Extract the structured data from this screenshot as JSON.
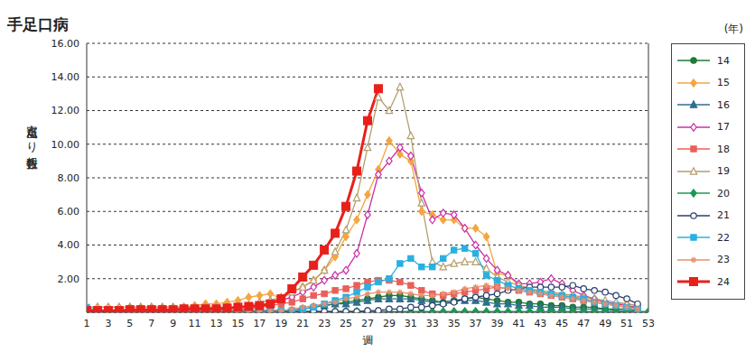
{
  "chart_data": {
    "type": "line",
    "title": "手足口病",
    "x_label": "週",
    "y_label": "定点当たり報告数",
    "legend_title": "(年)",
    "legend": "right",
    "grid": true,
    "x": [
      1,
      2,
      3,
      4,
      5,
      6,
      7,
      8,
      9,
      10,
      11,
      12,
      13,
      14,
      15,
      16,
      17,
      18,
      19,
      20,
      21,
      22,
      23,
      24,
      25,
      26,
      27,
      28,
      29,
      30,
      31,
      32,
      33,
      34,
      35,
      36,
      37,
      38,
      39,
      40,
      41,
      42,
      43,
      44,
      45,
      46,
      47,
      48,
      49,
      50,
      51,
      52,
      53
    ],
    "xlim": [
      1,
      53
    ],
    "xticks": [
      1,
      3,
      5,
      7,
      9,
      11,
      13,
      15,
      17,
      19,
      21,
      23,
      25,
      27,
      29,
      31,
      33,
      35,
      37,
      39,
      41,
      43,
      45,
      47,
      49,
      51,
      53
    ],
    "ylim": [
      0,
      16
    ],
    "yticks": [
      {
        "value": 2,
        "label": "2.00"
      },
      {
        "value": 4,
        "label": "4.00"
      },
      {
        "value": 6,
        "label": "6.00"
      },
      {
        "value": 8,
        "label": "8.00"
      },
      {
        "value": 10,
        "label": "10.00"
      },
      {
        "value": 12,
        "label": "12.00"
      },
      {
        "value": 14,
        "label": "14.00"
      },
      {
        "value": 16,
        "label": "16.00"
      }
    ],
    "series": [
      {
        "name": "14",
        "color": "#1f7a35",
        "marker": "circle",
        "line_style": "solid",
        "values": [
          0.1,
          0.1,
          0.1,
          0.1,
          0.1,
          0.1,
          0.1,
          0.1,
          0.1,
          0.1,
          0.1,
          0.1,
          0.1,
          0.1,
          0.1,
          0.1,
          0.1,
          0.1,
          0.1,
          0.1,
          0.2,
          0.3,
          0.4,
          0.5,
          0.6,
          0.7,
          0.8,
          0.9,
          1.0,
          1.0,
          0.9,
          0.8,
          0.7,
          0.6,
          0.7,
          0.8,
          0.9,
          0.8,
          0.7,
          0.6,
          0.6,
          0.5,
          0.5,
          0.4,
          0.4,
          0.3,
          0.3,
          0.3,
          0.2,
          0.2,
          0.2,
          0.1,
          null
        ]
      },
      {
        "name": "15",
        "color": "#f5a640",
        "marker": "diamond",
        "line_style": "solid",
        "values": [
          0.3,
          0.3,
          0.3,
          0.3,
          0.3,
          0.3,
          0.3,
          0.3,
          0.3,
          0.3,
          0.4,
          0.5,
          0.5,
          0.6,
          0.7,
          0.9,
          1.0,
          1.1,
          0.8,
          1.2,
          1.5,
          1.9,
          2.5,
          3.3,
          4.5,
          5.5,
          7.0,
          8.5,
          10.2,
          9.4,
          9.0,
          6.0,
          5.8,
          5.5,
          5.5,
          5.0,
          5.0,
          4.5,
          2.3,
          2.2,
          1.6,
          1.4,
          1.2,
          1.1,
          1.0,
          0.9,
          0.8,
          0.7,
          0.6,
          0.5,
          0.5,
          0.4,
          null
        ]
      },
      {
        "name": "16",
        "color": "#2f6f8f",
        "marker": "triangle",
        "line_style": "solid",
        "values": [
          0.1,
          0.1,
          0.1,
          0.1,
          0.1,
          0.1,
          0.1,
          0.1,
          0.1,
          0.1,
          0.1,
          0.1,
          0.1,
          0.1,
          0.1,
          0.1,
          0.1,
          0.1,
          0.1,
          0.1,
          0.2,
          0.3,
          0.4,
          0.5,
          0.5,
          0.6,
          0.7,
          0.8,
          0.8,
          0.8,
          0.8,
          0.7,
          0.6,
          0.6,
          0.7,
          0.7,
          0.7,
          0.6,
          0.5,
          0.5,
          0.4,
          0.4,
          0.3,
          0.3,
          0.3,
          0.2,
          0.2,
          0.2,
          0.2,
          0.1,
          0.1,
          0.1,
          null
        ]
      },
      {
        "name": "17",
        "color": "#cc2fa8",
        "marker": "diamond_open",
        "line_style": "solid",
        "values": [
          0.1,
          0.1,
          0.1,
          0.1,
          0.1,
          0.1,
          0.1,
          0.1,
          0.1,
          0.1,
          0.1,
          0.1,
          0.1,
          0.1,
          0.1,
          0.2,
          0.3,
          0.5,
          0.7,
          0.9,
          1.2,
          1.5,
          1.9,
          2.2,
          2.5,
          3.5,
          5.8,
          8.2,
          9.0,
          9.8,
          9.3,
          7.1,
          5.5,
          5.9,
          5.8,
          5.0,
          4.0,
          3.2,
          2.5,
          2.2,
          1.7,
          1.7,
          1.8,
          2.0,
          1.7,
          1.3,
          1.0,
          0.8,
          0.6,
          0.5,
          0.4,
          0.3,
          null
        ]
      },
      {
        "name": "18",
        "color": "#e8605a",
        "marker": "square",
        "line_style": "solid",
        "values": [
          0.1,
          0.1,
          0.1,
          0.1,
          0.1,
          0.1,
          0.1,
          0.1,
          0.1,
          0.1,
          0.1,
          0.1,
          0.1,
          0.1,
          0.15,
          0.2,
          0.3,
          0.4,
          0.5,
          0.6,
          0.8,
          1.0,
          1.1,
          1.3,
          1.4,
          1.6,
          1.8,
          1.9,
          1.9,
          1.8,
          1.6,
          1.3,
          1.1,
          1.0,
          1.1,
          1.2,
          1.3,
          1.4,
          1.5,
          1.4,
          1.3,
          1.2,
          1.1,
          1.0,
          0.9,
          0.8,
          0.7,
          0.6,
          0.5,
          0.4,
          0.3,
          0.3,
          null
        ]
      },
      {
        "name": "19",
        "color": "#b59e6e",
        "marker": "triangle_open",
        "line_style": "solid",
        "values": [
          0.3,
          0.3,
          0.3,
          0.3,
          0.3,
          0.3,
          0.3,
          0.3,
          0.3,
          0.3,
          0.3,
          0.3,
          0.3,
          0.3,
          0.3,
          0.4,
          0.6,
          0.7,
          0.9,
          1.2,
          1.5,
          1.9,
          2.5,
          3.6,
          4.9,
          6.8,
          9.8,
          12.8,
          12.0,
          13.4,
          10.5,
          6.5,
          3.0,
          2.7,
          2.9,
          3.0,
          3.0,
          2.6,
          2.1,
          1.8,
          1.6,
          1.4,
          1.3,
          1.2,
          1.1,
          1.0,
          0.9,
          0.8,
          0.7,
          0.6,
          0.5,
          0.4,
          null
        ]
      },
      {
        "name": "20",
        "color": "#1a9a50",
        "marker": "diamond",
        "line_style": "solid",
        "values": [
          0.05,
          0.05,
          0.05,
          0.05,
          0.05,
          0.05,
          0.05,
          0.05,
          0.05,
          0.05,
          0.05,
          0.05,
          0.05,
          0.05,
          0.05,
          0.05,
          0.05,
          0.05,
          0.05,
          0.05,
          0.05,
          0.05,
          0.05,
          0.05,
          0.05,
          0.05,
          0.05,
          0.05,
          0.05,
          0.05,
          0.05,
          0.05,
          0.05,
          0.05,
          0.05,
          0.05,
          0.05,
          0.05,
          0.05,
          0.05,
          0.05,
          0.05,
          0.05,
          0.05,
          0.05,
          0.05,
          0.05,
          0.05,
          0.05,
          0.05,
          0.05,
          0.05,
          0.05
        ]
      },
      {
        "name": "21",
        "color": "#2c3e70",
        "marker": "circle_open",
        "line_style": "solid",
        "values": [
          0.05,
          0.05,
          0.05,
          0.05,
          0.05,
          0.05,
          0.05,
          0.05,
          0.05,
          0.05,
          0.05,
          0.05,
          0.05,
          0.05,
          0.05,
          0.05,
          0.05,
          0.05,
          0.05,
          0.05,
          0.05,
          0.05,
          0.05,
          0.05,
          0.05,
          0.05,
          0.1,
          0.1,
          0.2,
          0.2,
          0.3,
          0.3,
          0.4,
          0.5,
          0.6,
          0.8,
          0.9,
          1.0,
          1.1,
          1.3,
          1.4,
          1.5,
          1.5,
          1.5,
          1.5,
          1.6,
          1.4,
          1.3,
          1.2,
          1.0,
          0.8,
          0.5,
          null
        ]
      },
      {
        "name": "22",
        "color": "#2ab0e0",
        "marker": "square",
        "line_style": "solid",
        "values": [
          0.3,
          0.1,
          0.1,
          0.1,
          0.1,
          0.1,
          0.1,
          0.1,
          0.1,
          0.1,
          0.1,
          0.1,
          0.1,
          0.1,
          0.1,
          0.1,
          0.1,
          0.1,
          0.1,
          0.1,
          0.2,
          0.3,
          0.5,
          0.7,
          0.9,
          1.2,
          1.5,
          1.8,
          2.0,
          2.9,
          3.2,
          2.7,
          2.7,
          3.2,
          3.7,
          3.8,
          3.5,
          2.2,
          1.9,
          1.6,
          1.4,
          1.3,
          1.2,
          1.1,
          1.0,
          0.9,
          0.8,
          0.6,
          0.5,
          0.4,
          0.3,
          0.2,
          null
        ]
      },
      {
        "name": "23",
        "color": "#e8906e",
        "marker": "star",
        "line_style": "solid",
        "values": [
          0.05,
          0.05,
          0.05,
          0.05,
          0.05,
          0.05,
          0.05,
          0.05,
          0.05,
          0.05,
          0.05,
          0.05,
          0.05,
          0.05,
          0.05,
          0.05,
          0.05,
          0.05,
          0.1,
          0.2,
          0.3,
          0.4,
          0.5,
          0.6,
          0.8,
          0.9,
          1.1,
          1.2,
          1.2,
          1.2,
          1.1,
          1.0,
          1.0,
          1.1,
          1.2,
          1.4,
          1.5,
          1.6,
          1.5,
          1.4,
          1.3,
          1.2,
          1.1,
          1.0,
          0.9,
          0.8,
          0.7,
          0.6,
          0.5,
          0.4,
          0.3,
          0.2,
          null
        ]
      },
      {
        "name": "24",
        "color": "#e8201c",
        "marker": "square",
        "line_style": "bold",
        "values": [
          0.1,
          0.1,
          0.1,
          0.1,
          0.15,
          0.15,
          0.15,
          0.15,
          0.15,
          0.2,
          0.2,
          0.2,
          0.2,
          0.25,
          0.3,
          0.35,
          0.4,
          0.5,
          0.8,
          1.4,
          2.1,
          2.8,
          3.7,
          4.7,
          6.3,
          8.4,
          11.4,
          13.3,
          null,
          null,
          null,
          null,
          null,
          null,
          null,
          null,
          null,
          null,
          null,
          null,
          null,
          null,
          null,
          null,
          null,
          null,
          null,
          null,
          null,
          null,
          null,
          null,
          null
        ]
      }
    ]
  }
}
